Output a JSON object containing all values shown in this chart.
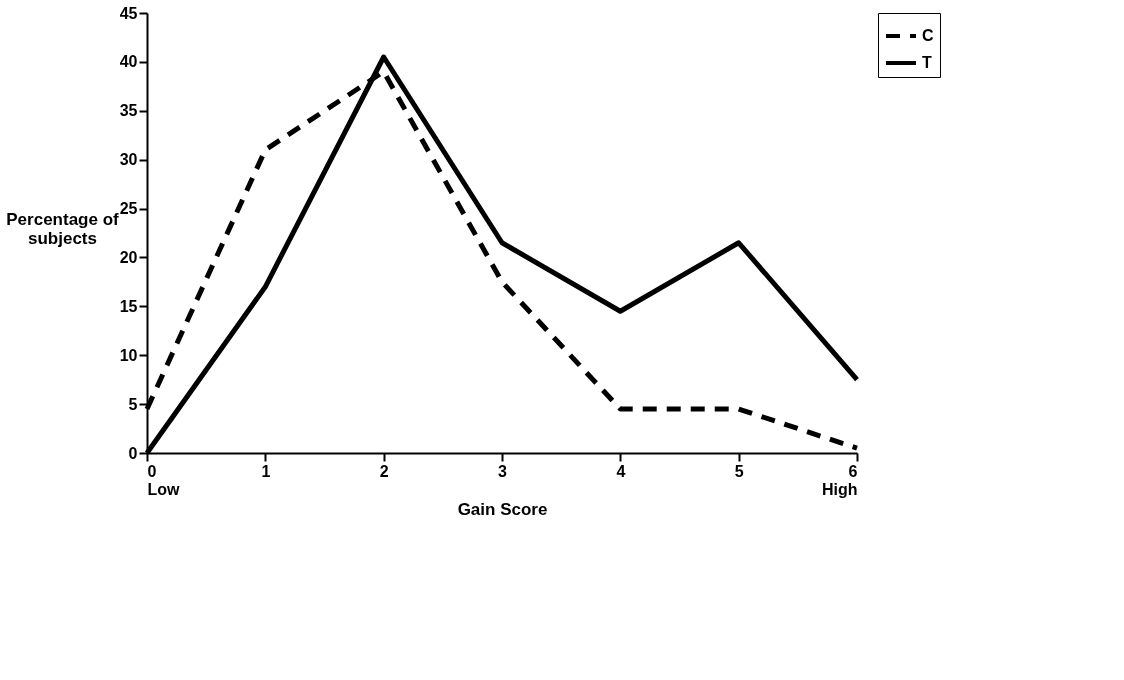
{
  "chart_data": {
    "type": "line",
    "xlabel": "Gain Score",
    "ylabel": "Percentage of\nsubjects",
    "x": [
      0,
      1,
      2,
      3,
      4,
      5,
      6
    ],
    "series": [
      {
        "name": "C",
        "color": "#000000",
        "line_style": "dashed",
        "values": [
          4.5,
          31,
          39,
          17.5,
          4.5,
          4.5,
          0.5
        ]
      },
      {
        "name": "T",
        "color": "#000000",
        "line_style": "solid",
        "values": [
          0,
          17,
          40.5,
          21.5,
          14.5,
          21.5,
          7.5
        ]
      }
    ],
    "xlim": [
      0,
      6
    ],
    "xticks": [
      {
        "value": 0,
        "label": "0\nLow"
      },
      1,
      2,
      3,
      4,
      5,
      {
        "value": 6,
        "label": "6\nHigh"
      }
    ],
    "ylim": [
      0,
      45
    ],
    "yticks": [
      0,
      5,
      10,
      15,
      20,
      25,
      30,
      35,
      40,
      45
    ],
    "grid": false,
    "legend": "right",
    "marker": "none"
  }
}
